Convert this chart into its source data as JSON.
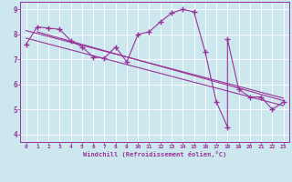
{
  "bg_color": "#cce8ee",
  "line_color": "#993399",
  "marker": "+",
  "markersize": 4,
  "linewidth": 0.8,
  "xlim_min": -0.5,
  "xlim_max": 23.5,
  "ylim_min": 3.7,
  "ylim_max": 9.3,
  "xticks": [
    0,
    1,
    2,
    3,
    4,
    5,
    6,
    7,
    8,
    9,
    10,
    11,
    12,
    13,
    14,
    15,
    16,
    17,
    18,
    19,
    20,
    21,
    22,
    23
  ],
  "yticks": [
    4,
    5,
    6,
    7,
    8,
    9
  ],
  "xlabel": "Windchill (Refroidissement éolien,°C)",
  "series_x": [
    0,
    1,
    2,
    3,
    4,
    5,
    6,
    7,
    8,
    9,
    10,
    11,
    12,
    13,
    14,
    15,
    16,
    17,
    18,
    18,
    19,
    20,
    21,
    22,
    23
  ],
  "series_y": [
    7.6,
    8.3,
    8.25,
    8.2,
    7.75,
    7.5,
    7.1,
    7.05,
    7.5,
    6.9,
    8.0,
    8.1,
    8.5,
    8.85,
    9.0,
    8.9,
    7.3,
    5.3,
    4.3,
    7.8,
    5.8,
    5.5,
    5.5,
    5.0,
    5.3
  ],
  "trend1_x": [
    0,
    23
  ],
  "trend1_y": [
    8.15,
    5.45
  ],
  "trend2_x": [
    1,
    23
  ],
  "trend2_y": [
    8.1,
    5.35
  ],
  "trend3_x": [
    0,
    23
  ],
  "trend3_y": [
    7.85,
    5.15
  ]
}
